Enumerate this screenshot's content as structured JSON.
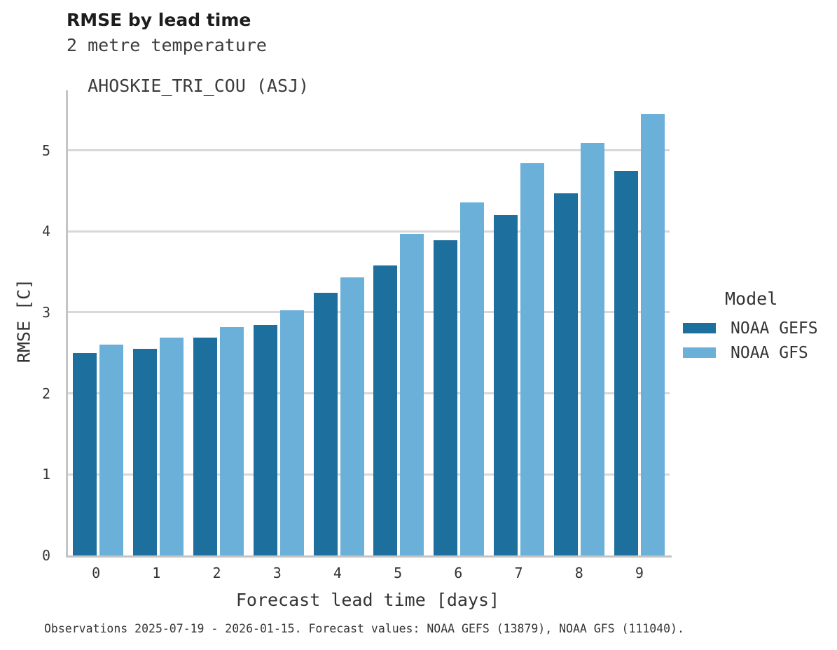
{
  "header": {
    "title": "RMSE by lead time",
    "subtitle_line1": "2 metre temperature",
    "subtitle_line2": "AHOSKIE_TRI_COU (ASJ)"
  },
  "footer": {
    "text": "Observations 2025-07-19 - 2026-01-15. Forecast values: NOAA GEFS (13879), NOAA GFS (111040)."
  },
  "legend": {
    "title": "Model"
  },
  "colors": {
    "series_dark": "#1D6F9E",
    "series_light": "#6BB0D8",
    "gridline": "#D8D8D8",
    "spine": "#C4C4C4",
    "text": "#343434"
  },
  "chart_data": {
    "type": "bar",
    "title": "RMSE by lead time",
    "subtitle": [
      "2 metre temperature",
      "AHOSKIE_TRI_COU (ASJ)"
    ],
    "xlabel": "Forecast lead time [days]",
    "ylabel": "RMSE [C]",
    "categories": [
      "0",
      "1",
      "2",
      "3",
      "4",
      "5",
      "6",
      "7",
      "8",
      "9"
    ],
    "series": [
      {
        "name": "NOAA GEFS",
        "color": "#1D6F9E",
        "values": [
          2.5,
          2.55,
          2.69,
          2.84,
          3.24,
          3.58,
          3.89,
          4.2,
          4.47,
          4.75
        ]
      },
      {
        "name": "NOAA GFS",
        "color": "#6BB0D8",
        "values": [
          2.6,
          2.69,
          2.82,
          3.03,
          3.43,
          3.97,
          4.36,
          4.84,
          5.09,
          5.45
        ]
      }
    ],
    "yticks": [
      0,
      1,
      2,
      3,
      4,
      5
    ],
    "ylim": [
      0,
      5.74
    ],
    "grid": true,
    "legend_title": "Model",
    "legend_position": "right",
    "caption": "Observations 2025-07-19 - 2026-01-15. Forecast values: NOAA GEFS (13879), NOAA GFS (111040)."
  }
}
